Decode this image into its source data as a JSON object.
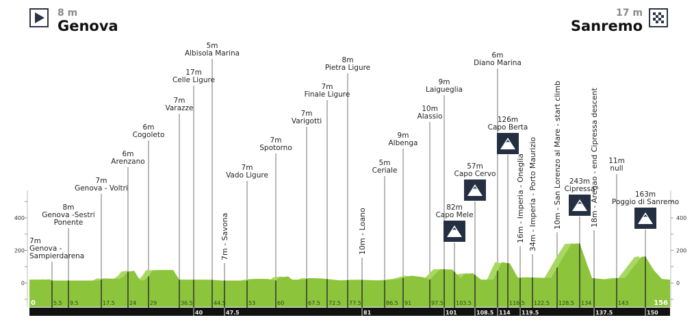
{
  "header": {
    "start": {
      "altitude": "8 m",
      "city": "Genova",
      "icon": "play-triangle-icon"
    },
    "finish": {
      "altitude": "17 m",
      "city": "Sanremo",
      "icon": "checkered-flag-icon"
    }
  },
  "colors": {
    "profile": "#8cc43c",
    "profile_light": "#a9d763",
    "bar": "#111111",
    "climb_icon": "#243042",
    "line": "#9a9a9a"
  },
  "chart_data": {
    "type": "area",
    "title": "",
    "xlabel": "",
    "ylabel": "",
    "xlim": [
      0,
      156
    ],
    "ylim": [
      -150,
      560
    ],
    "y_ticks": [
      0,
      200,
      400
    ],
    "y_tick_labels": [
      "0",
      "200",
      "400"
    ],
    "grid": false,
    "profile": [
      [
        0,
        20
      ],
      [
        3,
        20
      ],
      [
        5,
        22
      ],
      [
        5.5,
        15
      ],
      [
        10,
        15
      ],
      [
        17,
        15
      ],
      [
        18,
        28
      ],
      [
        22,
        25
      ],
      [
        23,
        40
      ],
      [
        24,
        70
      ],
      [
        25.5,
        75
      ],
      [
        27,
        15
      ],
      [
        28,
        18
      ],
      [
        29,
        40
      ],
      [
        30,
        78
      ],
      [
        35,
        80
      ],
      [
        36.5,
        20
      ],
      [
        44,
        20
      ],
      [
        47,
        15
      ],
      [
        53,
        15
      ],
      [
        55,
        25
      ],
      [
        58,
        25
      ],
      [
        60,
        15
      ],
      [
        61,
        35
      ],
      [
        63,
        40
      ],
      [
        64,
        20
      ],
      [
        67,
        20
      ],
      [
        68,
        30
      ],
      [
        71,
        28
      ],
      [
        74,
        20
      ],
      [
        76,
        15
      ],
      [
        80,
        20
      ],
      [
        86,
        15
      ],
      [
        90,
        25
      ],
      [
        93,
        45
      ],
      [
        96,
        35
      ],
      [
        97.5,
        20
      ],
      [
        100,
        85
      ],
      [
        103,
        82
      ],
      [
        105,
        30
      ],
      [
        106,
        55
      ],
      [
        108,
        60
      ],
      [
        110,
        20
      ],
      [
        113,
        20
      ],
      [
        115,
        128
      ],
      [
        117,
        120
      ],
      [
        119,
        30
      ],
      [
        121,
        35
      ],
      [
        127,
        30
      ],
      [
        130,
        160
      ],
      [
        132,
        240
      ],
      [
        134,
        243
      ],
      [
        137,
        30
      ],
      [
        141,
        20
      ],
      [
        143,
        30
      ],
      [
        145,
        30
      ],
      [
        149,
        160
      ],
      [
        150,
        163
      ],
      [
        152,
        80
      ],
      [
        154,
        25
      ],
      [
        156,
        20
      ]
    ],
    "km_labels_top": [
      "0",
      "5.5",
      "9.5",
      "17.5",
      "24",
      "29",
      "36.5",
      "44.5",
      "53",
      "60",
      "67.5",
      "72.5",
      "77.5",
      "86.5",
      "91",
      "97.5",
      "103.5",
      "116.5",
      "122.5",
      "128.5",
      "134",
      "143",
      "156"
    ],
    "km_labels_bottom": [
      "40",
      "47.5",
      "81",
      "101",
      "108.5",
      "114",
      "119.5",
      "137.5",
      "150"
    ],
    "points": [
      {
        "km": 5.5,
        "elevation": "7m",
        "name": [
          "Genova -",
          "Sampierdarena"
        ],
        "type": "town"
      },
      {
        "km": 9.5,
        "elevation": "8m",
        "name": [
          "Genova -Sestri",
          "Ponente"
        ],
        "type": "town"
      },
      {
        "km": 17.5,
        "elevation": "7m",
        "name": [
          "Genova - Voltri"
        ],
        "type": "town"
      },
      {
        "km": 24,
        "elevation": "6m",
        "name": [
          "Arenzano"
        ],
        "type": "town"
      },
      {
        "km": 29,
        "elevation": "6m",
        "name": [
          "Cogoleto"
        ],
        "type": "town"
      },
      {
        "km": 36.5,
        "elevation": "7m",
        "name": [
          "Varazze"
        ],
        "type": "town"
      },
      {
        "km": 40,
        "elevation": "17m",
        "name": [
          "Celle Ligure"
        ],
        "type": "town"
      },
      {
        "km": 44.5,
        "elevation": "5m",
        "name": [
          "Albisola Marina"
        ],
        "type": "town"
      },
      {
        "km": 47.5,
        "label": "7m - Savona",
        "type": "vertical"
      },
      {
        "km": 53,
        "elevation": "7m",
        "name": [
          "Vado Ligure"
        ],
        "type": "town"
      },
      {
        "km": 60,
        "elevation": "7m",
        "name": [
          "Spotorno"
        ],
        "type": "town"
      },
      {
        "km": 67.5,
        "elevation": "7m",
        "name": [
          "Varigotti"
        ],
        "type": "town"
      },
      {
        "km": 72.5,
        "elevation": "7m",
        "name": [
          "Finale Ligure"
        ],
        "type": "town"
      },
      {
        "km": 77.5,
        "elevation": "8m",
        "name": [
          "Pietra Ligure"
        ],
        "type": "town"
      },
      {
        "km": 81,
        "label": "10m - Loano",
        "type": "vertical"
      },
      {
        "km": 86.5,
        "elevation": "5m",
        "name": [
          "Ceriale"
        ],
        "type": "town"
      },
      {
        "km": 91,
        "elevation": "9m",
        "name": [
          "Albenga"
        ],
        "type": "town"
      },
      {
        "km": 97.5,
        "elevation": "10m",
        "name": [
          "Alassio"
        ],
        "type": "town"
      },
      {
        "km": 101,
        "elevation": "9m",
        "name": [
          "Laigueglia"
        ],
        "type": "town"
      },
      {
        "km": 103.5,
        "elevation": "82m",
        "name": [
          "Capo Mele"
        ],
        "type": "climb"
      },
      {
        "km": 108.5,
        "elevation": "57m",
        "name": [
          "Capo Cervo"
        ],
        "type": "climb"
      },
      {
        "km": 114,
        "elevation": "6m",
        "name": [
          "Diano Marina"
        ],
        "type": "town"
      },
      {
        "km": 116.5,
        "elevation": "126m",
        "name": [
          "Capo Berta"
        ],
        "type": "climb"
      },
      {
        "km": 119.5,
        "label": "16m - Imperia - Oneglia",
        "type": "vertical"
      },
      {
        "km": 122.5,
        "label": "34m - Imperia - Porto Maurizio",
        "type": "vertical"
      },
      {
        "km": 128.5,
        "label": "10m - San Lorenzo al Mare - start climb",
        "type": "vertical"
      },
      {
        "km": 134,
        "elevation": "243m",
        "name": [
          "Cipressa"
        ],
        "type": "climb"
      },
      {
        "km": 137.5,
        "label": "18m - Aregao - end Cipressa descent",
        "type": "vertical"
      },
      {
        "km": 143,
        "elevation": "11m",
        "name": [
          "null"
        ],
        "type": "town"
      },
      {
        "km": 150,
        "elevation": "163m",
        "name": [
          "Poggio di Sanremo"
        ],
        "type": "climb"
      }
    ]
  }
}
